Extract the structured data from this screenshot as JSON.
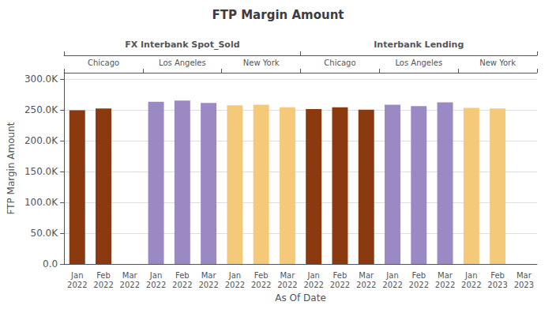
{
  "chart_data": {
    "type": "bar",
    "title": "FTP Margin Amount",
    "x_label": "As Of Date",
    "y_label": "FTP Margin Amount",
    "categories": [
      "Jan\n2022",
      "Feb\n2022",
      "Mar\n2022",
      "Jan\n2022",
      "Feb\n2022",
      "Mar\n2022",
      "Jan\n2022",
      "Feb\n2022",
      "Mar\n2022",
      "Jan\n2022",
      "Feb\n2022",
      "Mar\n2022",
      "Jan\n2022",
      "Feb\n2022",
      "Mar\n2022",
      "Jan\n2022",
      "Feb\n2023",
      "Mar\n2023"
    ],
    "region_groups": [
      "Chicago",
      "Los Angeles",
      "New York",
      "Chicago",
      "Los Angeles",
      "New York"
    ],
    "product_groups": [
      "FX Interbank Spot_Sold",
      "Interbank Lending"
    ],
    "series": [
      {
        "name": "Chicago",
        "color": "#8B3A0F",
        "values": [
          249000,
          252000,
          null,
          null,
          null,
          null,
          null,
          null,
          null,
          251000,
          254000,
          250000,
          null,
          null,
          null,
          null,
          null,
          null
        ]
      },
      {
        "name": "Los Angeles",
        "color": "#9B89C4",
        "values": [
          null,
          null,
          null,
          263000,
          265000,
          261000,
          null,
          null,
          null,
          null,
          null,
          null,
          258000,
          256000,
          262000,
          null,
          null,
          null
        ]
      },
      {
        "name": "New York",
        "color": "#F5C97A",
        "values": [
          null,
          null,
          null,
          null,
          null,
          null,
          257000,
          258000,
          254000,
          null,
          null,
          null,
          null,
          null,
          null,
          253000,
          252000,
          null
        ]
      }
    ],
    "ylim": [
      0,
      310000
    ],
    "yticks": [
      {
        "value": 0,
        "label": "0.0"
      },
      {
        "value": 50000,
        "label": "50.0K"
      },
      {
        "value": 100000,
        "label": "100.0K"
      },
      {
        "value": 150000,
        "label": "150.0K"
      },
      {
        "value": 200000,
        "label": "200.0K"
      },
      {
        "value": 250000,
        "label": "250.0K"
      },
      {
        "value": 300000,
        "label": "300.0K"
      }
    ],
    "grid": true
  }
}
